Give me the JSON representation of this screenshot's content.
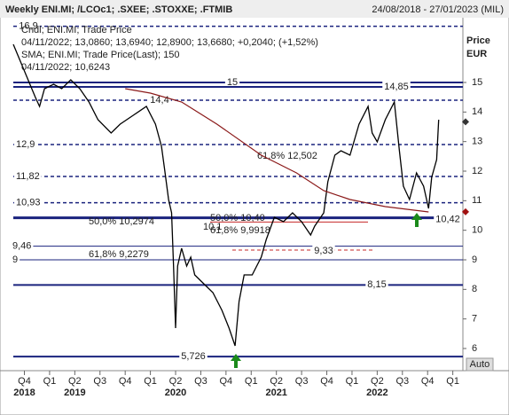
{
  "chart_data": {
    "type": "line",
    "title": "Weekly ENI.MI; /LCOc1; .SXEE; .STOXXE; .FTMIB",
    "date_range": "24/08/2018 - 27/01/2023 (MIL)",
    "legend_lines": [
      "Cndl; ENI.MI; Trade Price",
      "04/11/2022; 13,0860; 13,6940; 12,8900; 13,6680; +0,2040; (+1,52%)",
      "SMA; ENI.MI; Trade Price(Last); 150",
      "04/11/2022; 10,6243"
    ],
    "y_axis_label": "Price",
    "y_axis_unit": "EUR",
    "auto_label": "Auto",
    "xlim": [
      2018.64,
      2023.1
    ],
    "ylim": [
      5.34,
      17.13
    ],
    "yticks": [
      6,
      7,
      8,
      9,
      10,
      11,
      12,
      13,
      14,
      15
    ],
    "xticks": [
      {
        "value": 2018.75,
        "label": "Q4"
      },
      {
        "value": 2019.0,
        "label": "Q1"
      },
      {
        "value": 2019.25,
        "label": "Q2"
      },
      {
        "value": 2019.5,
        "label": "Q3"
      },
      {
        "value": 2019.75,
        "label": "Q4"
      },
      {
        "value": 2020.0,
        "label": "Q1"
      },
      {
        "value": 2020.25,
        "label": "Q2"
      },
      {
        "value": 2020.5,
        "label": "Q3"
      },
      {
        "value": 2020.75,
        "label": "Q4"
      },
      {
        "value": 2021.0,
        "label": "Q1"
      },
      {
        "value": 2021.25,
        "label": "Q2"
      },
      {
        "value": 2021.5,
        "label": "Q3"
      },
      {
        "value": 2021.75,
        "label": "Q4"
      },
      {
        "value": 2022.0,
        "label": "Q1"
      },
      {
        "value": 2022.25,
        "label": "Q2"
      },
      {
        "value": 2022.5,
        "label": "Q3"
      },
      {
        "value": 2022.75,
        "label": "Q4"
      },
      {
        "value": 2023.0,
        "label": "Q1"
      }
    ],
    "year_ticks": [
      {
        "value": 2018.75,
        "label": "2018"
      },
      {
        "value": 2019.25,
        "label": "2019"
      },
      {
        "value": 2020.25,
        "label": "2020"
      },
      {
        "value": 2021.25,
        "label": "2021"
      },
      {
        "value": 2022.25,
        "label": "2022"
      }
    ],
    "series": [
      {
        "name": "ENI.MI",
        "color": "#000000",
        "x": [
          2018.64,
          2018.86,
          2018.9,
          2018.95,
          2019.04,
          2019.12,
          2019.21,
          2019.3,
          2019.39,
          2019.48,
          2019.61,
          2019.7,
          2019.83,
          2019.96,
          2020.05,
          2020.11,
          2020.14,
          2020.18,
          2020.21,
          2020.23,
          2020.25,
          2020.27,
          2020.31,
          2020.36,
          2020.4,
          2020.44,
          2020.53,
          2020.62,
          2020.71,
          2020.78,
          2020.84,
          2020.88,
          2020.93,
          2021.01,
          2021.1,
          2021.15,
          2021.23,
          2021.32,
          2021.41,
          2021.5,
          2021.59,
          2021.63,
          2021.72,
          2021.76,
          2021.83,
          2021.89,
          2021.98,
          2022.07,
          2022.16,
          2022.2,
          2022.25,
          2022.33,
          2022.42,
          2022.47,
          2022.51,
          2022.57,
          2022.64,
          2022.71,
          2022.76,
          2022.79,
          2022.84,
          2022.86
        ],
        "values": [
          16.29,
          14.49,
          14.19,
          14.79,
          14.94,
          14.79,
          15.09,
          14.79,
          14.34,
          13.74,
          13.29,
          13.59,
          13.89,
          14.19,
          13.59,
          12.84,
          12.09,
          11.04,
          10.59,
          8.79,
          6.69,
          8.79,
          9.39,
          8.79,
          9.09,
          8.49,
          8.19,
          7.89,
          7.29,
          6.69,
          6.09,
          7.59,
          8.49,
          8.49,
          9.09,
          9.69,
          10.44,
          10.29,
          10.59,
          10.29,
          9.84,
          10.14,
          10.59,
          11.64,
          12.54,
          12.69,
          12.54,
          13.59,
          14.19,
          13.29,
          12.99,
          13.74,
          14.34,
          12.69,
          11.49,
          11.04,
          11.94,
          11.49,
          10.74,
          11.79,
          12.39,
          13.74
        ]
      },
      {
        "name": "SMA 150",
        "color": "#8b1a1a",
        "x": [
          2019.75,
          2020.0,
          2020.31,
          2020.66,
          2021.1,
          2021.45,
          2021.72,
          2021.98,
          2022.33,
          2022.76
        ],
        "values": [
          14.79,
          14.64,
          14.34,
          13.59,
          12.54,
          11.94,
          11.34,
          11.04,
          10.8,
          10.62
        ]
      }
    ],
    "last_markers": [
      {
        "value": 13.668,
        "color": "#333333"
      },
      {
        "value": 10.6243,
        "color": "#a01010"
      }
    ],
    "levels": [
      {
        "value": 16.9,
        "label": "16,9",
        "style": "dashed",
        "color": "#1a237e"
      },
      {
        "value": 15,
        "label": "15",
        "style": "solid",
        "color": "#1a237e"
      },
      {
        "value": 14.85,
        "label": "14,85",
        "style": "solid",
        "color": "#1a237e"
      },
      {
        "value": 14.4,
        "label": "14,4",
        "style": "dashed",
        "color": "#1a237e"
      },
      {
        "value": 12.9,
        "label": "12,9",
        "style": "dashed",
        "color": "#1a237e"
      },
      {
        "value": 11.82,
        "label": "11,82",
        "style": "dashed",
        "color": "#1a237e"
      },
      {
        "value": 10.93,
        "label": "10,93",
        "style": "dashed",
        "color": "#1a237e"
      },
      {
        "value": 10.42,
        "label": "10,42",
        "style": "thick",
        "color": "#1a237e"
      },
      {
        "value": 9.46,
        "label": "9,46",
        "style": "thin",
        "color": "#1a237e"
      },
      {
        "value": 9,
        "label": "9",
        "style": "thin",
        "color": "#1a237e"
      },
      {
        "value": 8.15,
        "label": "8,15",
        "style": "solid",
        "color": "#1a237e"
      },
      {
        "value": 5.726,
        "label": "5,726",
        "style": "solid",
        "color": "#1a237e"
      },
      {
        "value": 9.33,
        "label": "9,33",
        "style": "red",
        "color": "#c62828"
      }
    ],
    "fib_labels": [
      "61,8%  12,502",
      "50,0%  10,2974",
      "61,8%  9,2279",
      "50,0% 10,40",
      "61,8% 9,9918",
      "10,1"
    ],
    "fib_color": "#c62828"
  }
}
